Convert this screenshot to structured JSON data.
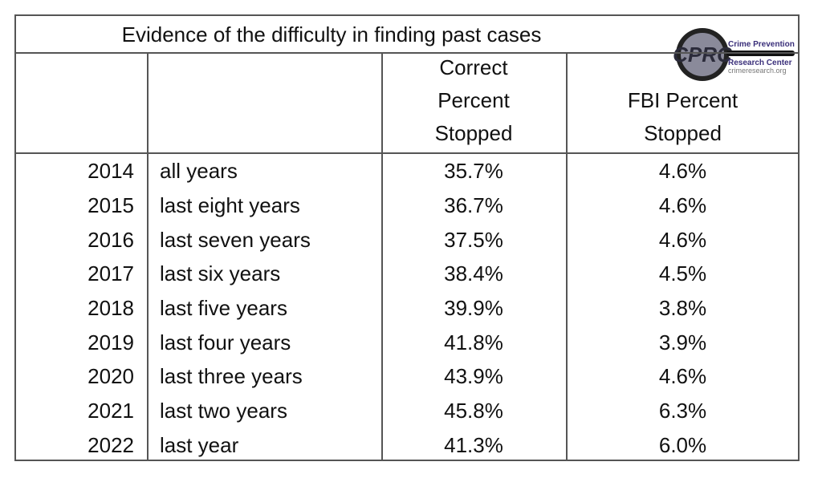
{
  "title": "Evidence of the difficulty in finding past cases",
  "logo": {
    "mark": "CPRC",
    "line1": "Crime Prevention",
    "line2": "Research Center",
    "url": "crimeresearch.org"
  },
  "table": {
    "header": [
      [
        "Correct",
        "Percent",
        "Stopped"
      ],
      [
        "FBI Percent",
        "Stopped"
      ]
    ],
    "rows": [
      [
        "2014",
        "all years",
        "35.7%",
        "4.6%"
      ],
      [
        "2015",
        "last eight years",
        "36.7%",
        "4.6%"
      ],
      [
        "2016",
        "last seven years",
        "37.5%",
        "4.6%"
      ],
      [
        "2017",
        "last six years",
        "38.4%",
        "4.5%"
      ],
      [
        "2018",
        "last five years",
        "39.9%",
        "3.8%"
      ],
      [
        "2019",
        "last four years",
        "41.8%",
        "3.9%"
      ],
      [
        "2020",
        "last three years",
        "43.9%",
        "4.6%"
      ],
      [
        "2021",
        "last two years",
        "45.8%",
        "6.3%"
      ],
      [
        "2022",
        "last year",
        "41.3%",
        "6.0%"
      ]
    ]
  }
}
